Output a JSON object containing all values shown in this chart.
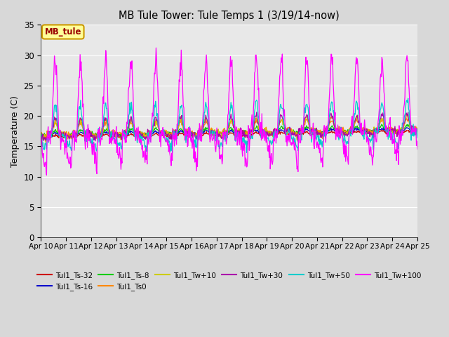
{
  "title": "MB Tule Tower: Tule Temps 1 (3/19/14-now)",
  "ylabel": "Temperature (C)",
  "legend_label": "MB_tule",
  "ylim": [
    0,
    35
  ],
  "yticks": [
    0,
    5,
    10,
    15,
    20,
    25,
    30,
    35
  ],
  "n_days": 15,
  "start_day": 10,
  "bg_color": "#d8d8d8",
  "plot_bg": "#e8e8e8",
  "grid_color": "#ffffff",
  "series": [
    {
      "name": "Tul1_Ts-32",
      "color": "#cc0000",
      "base": 16.5,
      "amp": 0.3,
      "noise": 0.1
    },
    {
      "name": "Tul1_Ts-16",
      "color": "#0000cc",
      "base": 16.8,
      "amp": 0.4,
      "noise": 0.1
    },
    {
      "name": "Tul1_Ts-8",
      "color": "#00cc00",
      "base": 17.0,
      "amp": 0.6,
      "noise": 0.15
    },
    {
      "name": "Tul1_Ts0",
      "color": "#ff8800",
      "base": 17.2,
      "amp": 1.5,
      "noise": 0.2
    },
    {
      "name": "Tul1_Tw+10",
      "color": "#cccc00",
      "base": 17.0,
      "amp": 2.0,
      "noise": 0.3
    },
    {
      "name": "Tul1_Tw+30",
      "color": "#aa00aa",
      "base": 17.0,
      "amp": 2.5,
      "noise": 0.3
    },
    {
      "name": "Tul1_Tw+50",
      "color": "#00cccc",
      "base": 16.5,
      "amp": 5.0,
      "noise": 0.5
    },
    {
      "name": "Tul1_Tw+100",
      "color": "#ff00ff",
      "base": 16.5,
      "amp": 12.0,
      "noise": 1.0
    }
  ],
  "legend_ncol_row1": 6,
  "legend_entries_row1": [
    "Tul1_Ts-32",
    "Tul1_Ts-16",
    "Tul1_Ts-8",
    "Tul1_Ts0",
    "Tul1_Tw+10",
    "Tul1_Tw+30"
  ],
  "legend_entries_row2": [
    "Tul1_Tw+50",
    "Tul1_Tw+100"
  ]
}
